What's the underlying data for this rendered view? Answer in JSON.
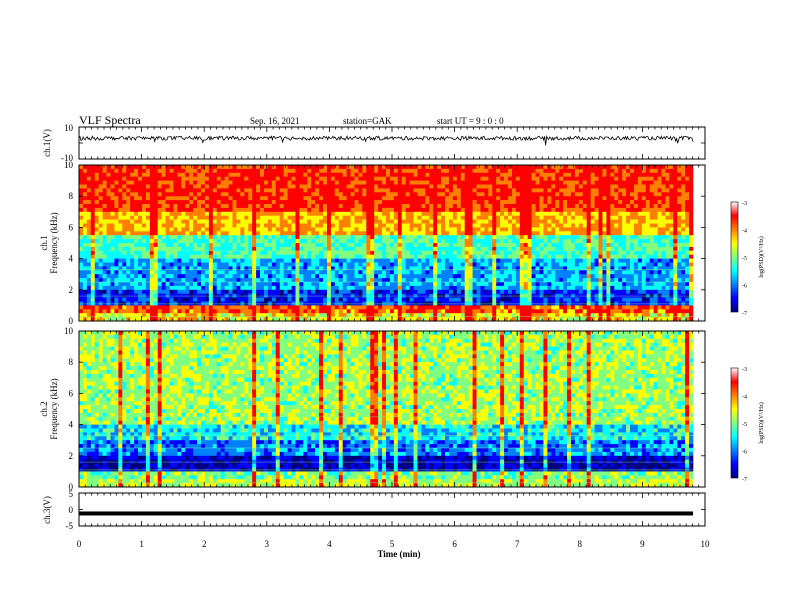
{
  "header": {
    "title": "VLF Spectra",
    "date": "Sep. 16, 2021",
    "station": "station=GAK",
    "start": "start UT = 9 : 0 : 0"
  },
  "colors": {
    "colormap": [
      "#00007f",
      "#0000ff",
      "#0080ff",
      "#00ffff",
      "#80ff80",
      "#ffff00",
      "#ff8000",
      "#ff0000",
      "#ffffff"
    ],
    "trace": "#000000"
  },
  "chart_data": [
    {
      "type": "line",
      "panel": "ch1-waveform",
      "ylabel": "ch.1(V)",
      "ylim": [
        -10,
        10
      ],
      "yticks": [
        "10",
        "-10"
      ],
      "xlim": [
        0,
        10
      ],
      "baseline_value": 3,
      "noise_amplitude": 1.2
    },
    {
      "type": "heatmap",
      "panel": "ch1-spectrogram",
      "ylabel": "ch.1\nFrequency (kHz)",
      "ylim": [
        0,
        10
      ],
      "yticks": [
        "0",
        "2",
        "4",
        "6",
        "8",
        "10"
      ],
      "xlim": [
        0,
        10
      ],
      "colorbar": {
        "label": "log(PSD)(V²/Hz)",
        "range": [
          -7,
          -3
        ],
        "ticks": [
          "-3",
          "-4",
          "-5",
          "-6",
          "-7"
        ]
      },
      "bands_khz_to_level": [
        [
          0,
          0.5,
          -4.2
        ],
        [
          0.5,
          1,
          -3.6
        ],
        [
          1,
          2,
          -6.2
        ],
        [
          2,
          4,
          -5.6
        ],
        [
          4,
          5.5,
          -5.0
        ],
        [
          5.5,
          7,
          -4.0
        ],
        [
          7,
          10,
          -3.4
        ]
      ]
    },
    {
      "type": "heatmap",
      "panel": "ch2-spectrogram",
      "ylabel": "ch.2\nFrequency (kHz)",
      "ylim": [
        0,
        10
      ],
      "yticks": [
        "0",
        "2",
        "4",
        "6",
        "8",
        "10"
      ],
      "xlim": [
        0,
        10
      ],
      "colorbar": {
        "label": "log(PSD)(V²/Hz)",
        "range": [
          -7,
          -3
        ],
        "ticks": [
          "-3",
          "-4",
          "-5",
          "-6",
          "-7"
        ]
      },
      "bands_khz_to_level": [
        [
          0,
          0.5,
          -4.5
        ],
        [
          0.5,
          1,
          -4.8
        ],
        [
          1,
          2,
          -6.5
        ],
        [
          2,
          3,
          -5.8
        ],
        [
          3,
          4,
          -5.3
        ],
        [
          4,
          10,
          -4.6
        ]
      ]
    },
    {
      "type": "line",
      "panel": "ch3-waveform",
      "ylabel": "ch.3(V)",
      "ylim": [
        -5,
        5
      ],
      "yticks": [
        "5",
        "0",
        "-5"
      ],
      "xlim": [
        0,
        10
      ],
      "baseline_value": -1.2
    }
  ],
  "xaxis": {
    "label": "Time (min)",
    "ticks": [
      "0",
      "1",
      "2",
      "3",
      "4",
      "5",
      "6",
      "7",
      "8",
      "9",
      "10"
    ]
  }
}
